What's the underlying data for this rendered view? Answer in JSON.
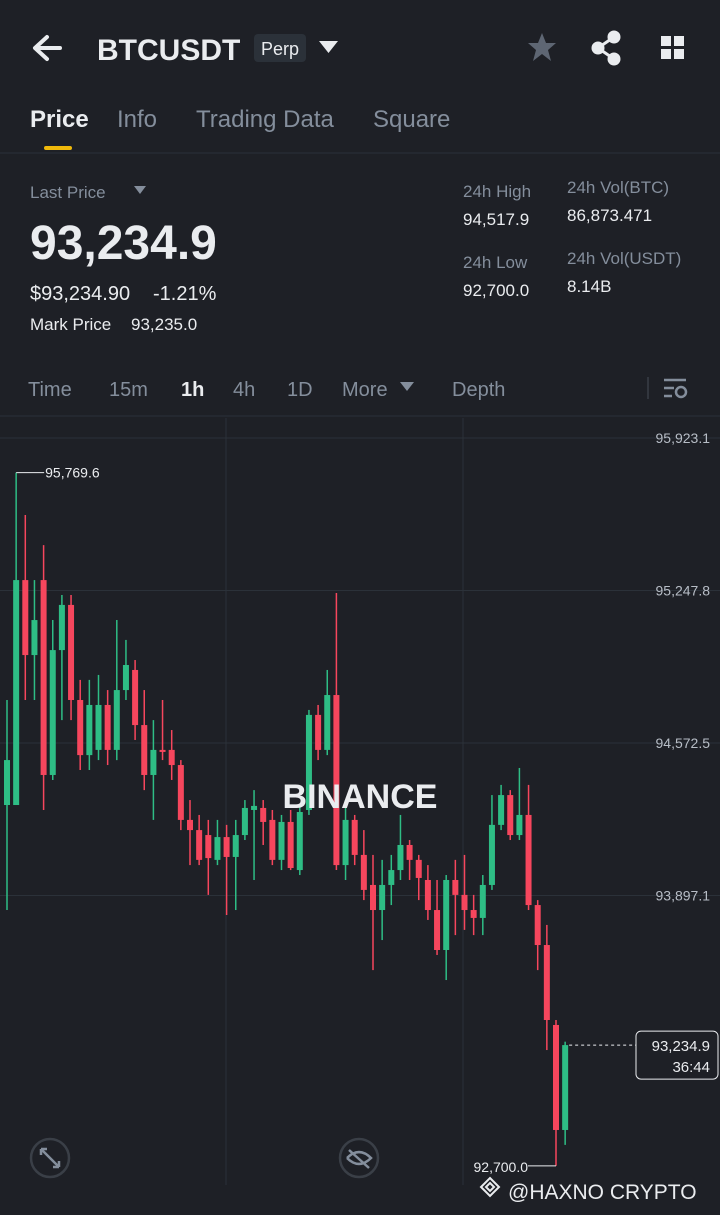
{
  "header": {
    "title": "BTCUSDT",
    "badge": "Perp"
  },
  "tabs": [
    "Price",
    "Info",
    "Trading Data",
    "Square"
  ],
  "price_panel": {
    "last_price_label": "Last Price",
    "last_price": "93,234.9",
    "usd_price": "$93,234.90",
    "change": "-1.21%",
    "mark_price_label": "Mark Price",
    "mark_price": "93,235.0",
    "stats": [
      {
        "label": "24h High",
        "value": "94,517.9"
      },
      {
        "label": "24h Low",
        "value": "92,700.0"
      },
      {
        "label": "24h Vol(BTC)",
        "value": "86,873.471"
      },
      {
        "label": "24h Vol(USDT)",
        "value": "8.14B"
      }
    ]
  },
  "intervals": [
    "Time",
    "15m",
    "1h",
    "4h",
    "1D",
    "More",
    "Depth"
  ],
  "watermark": {
    "logo": "BINANCE",
    "credit": "@HAXNO CRYPTO"
  },
  "chart_data": {
    "type": "candlestick",
    "up_color": "#2ebd85",
    "down_color": "#f6465d",
    "grid": true,
    "ylim": [
      92615.4,
      96011.7
    ],
    "yticks": [
      {
        "value": 95923.1,
        "label": "95,923.1"
      },
      {
        "value": 95247.8,
        "label": "95,247.8"
      },
      {
        "value": 94572.5,
        "label": "94,572.5"
      },
      {
        "value": 93897.1,
        "label": "93,897.1"
      }
    ],
    "open": [
      94298,
      94298,
      95294,
      94962,
      95294,
      94431,
      94984,
      95184,
      94763,
      94519,
      94542,
      94741,
      94542,
      94807,
      94896,
      94652,
      94431,
      94542,
      94542,
      94475,
      94232,
      94187,
      94165,
      94055,
      94156,
      94068,
      94165,
      94276,
      94285,
      94232,
      94055,
      94223,
      94010,
      94276,
      94697,
      94542,
      94785,
      94032,
      94232,
      94077,
      93944,
      93833,
      93944,
      94010,
      94121,
      94055,
      93966,
      93833,
      93656,
      93966,
      93900,
      93833,
      93798,
      93944,
      94210,
      94342,
      94165,
      94254,
      93855,
      93678,
      93324,
      92859
    ],
    "high": [
      94763,
      95769.6,
      95582,
      95294,
      95449,
      95117,
      95228,
      95228,
      94852,
      94852,
      94874,
      94807,
      95117,
      95029,
      94940,
      94807,
      94674,
      94763,
      94630,
      94497,
      94320,
      94254,
      94232,
      94232,
      94210,
      94232,
      94320,
      94364,
      94320,
      94276,
      94254,
      94276,
      94298,
      94719,
      94741,
      94896,
      95237,
      94320,
      94254,
      94187,
      94077,
      94055,
      94077,
      94254,
      94143,
      94077,
      94032,
      93966,
      93988,
      94055,
      94077,
      93900,
      93988,
      94342,
      94387,
      94364,
      94462,
      94387,
      93877,
      93767,
      93346,
      93250
    ],
    "low": [
      93833,
      94298,
      94763,
      94763,
      94276,
      94409,
      94674,
      94674,
      94453,
      94453,
      94497,
      94475,
      94497,
      94763,
      94586,
      94364,
      94232,
      94497,
      94409,
      94187,
      94032,
      94032,
      93900,
      94032,
      93811,
      93833,
      94143,
      93966,
      94121,
      94032,
      94010,
      94010,
      93988,
      94254,
      94497,
      94519,
      94010,
      93966,
      94032,
      93877,
      93567,
      93700,
      93855,
      93966,
      93966,
      93877,
      93789,
      93634,
      93523,
      93722,
      93745,
      93722,
      93722,
      93922,
      94187,
      94143,
      94143,
      93833,
      93567,
      93213,
      92700,
      92793
    ],
    "close": [
      94497,
      95294,
      94962,
      95117,
      94431,
      94984,
      95184,
      94763,
      94519,
      94741,
      94741,
      94542,
      94807,
      94918,
      94652,
      94431,
      94542,
      94533,
      94475,
      94232,
      94187,
      94055,
      94063,
      94156,
      94068,
      94165,
      94285,
      94294,
      94223,
      94055,
      94223,
      94019,
      94267,
      94697,
      94542,
      94785,
      94032,
      94232,
      94077,
      93922,
      93833,
      93944,
      94010,
      94121,
      94055,
      93975,
      93833,
      93656,
      93966,
      93900,
      93833,
      93798,
      93944,
      94210,
      94342,
      94165,
      94254,
      93855,
      93678,
      93346,
      92859,
      93234.9
    ],
    "max_label": {
      "value": 95769.6,
      "label": "95,769.6"
    },
    "min_label": {
      "value": 92700.0,
      "label": "92,700.0"
    },
    "last_label": {
      "value": 93234.9,
      "label": "93,234.9"
    },
    "countdown": "36:44"
  }
}
